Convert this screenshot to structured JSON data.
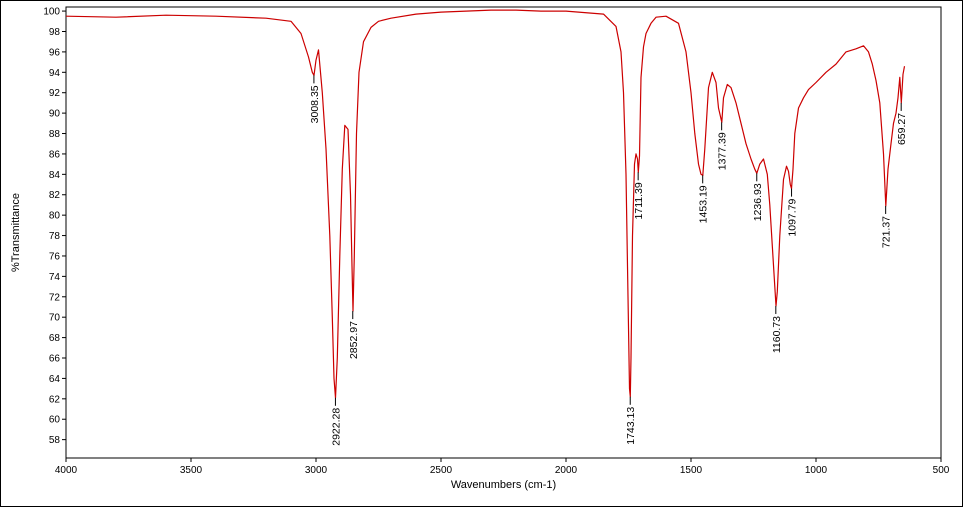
{
  "chart_data": {
    "type": "line",
    "xlabel": "Wavenumbers (cm-1)",
    "ylabel": "%Transmittance",
    "xlim": [
      4000,
      500
    ],
    "ylim": [
      56.2,
      100.4
    ],
    "x_ticks": [
      4000,
      3500,
      3000,
      2500,
      2000,
      1500,
      1000,
      500
    ],
    "y_ticks": [
      58,
      60,
      62,
      64,
      66,
      68,
      70,
      72,
      74,
      76,
      78,
      80,
      82,
      84,
      86,
      88,
      90,
      92,
      94,
      96,
      98,
      100
    ],
    "grid": false,
    "line_color": "#cc0000",
    "series": [
      {
        "x": [
          4000,
          3800,
          3600,
          3400,
          3200,
          3100,
          3060,
          3030,
          3015,
          3008,
          3000,
          2990,
          2975,
          2960,
          2945,
          2935,
          2928,
          2922,
          2915,
          2905,
          2895,
          2885,
          2872,
          2862,
          2856,
          2852,
          2847,
          2838,
          2828,
          2810,
          2780,
          2750,
          2700,
          2600,
          2500,
          2400,
          2300,
          2200,
          2100,
          2000,
          1900,
          1850,
          1800,
          1780,
          1770,
          1760,
          1752,
          1746,
          1743,
          1740,
          1734,
          1726,
          1720,
          1714,
          1711,
          1706,
          1700,
          1690,
          1680,
          1660,
          1640,
          1600,
          1550,
          1520,
          1500,
          1485,
          1470,
          1460,
          1453,
          1445,
          1430,
          1415,
          1400,
          1390,
          1377,
          1370,
          1355,
          1340,
          1320,
          1300,
          1280,
          1260,
          1245,
          1237,
          1225,
          1210,
          1195,
          1185,
          1175,
          1165,
          1160,
          1155,
          1145,
          1130,
          1118,
          1110,
          1103,
          1098,
          1092,
          1085,
          1070,
          1050,
          1030,
          1000,
          960,
          920,
          880,
          840,
          810,
          790,
          775,
          760,
          745,
          730,
          721,
          712,
          700,
          690,
          680,
          672,
          665,
          659,
          652,
          646
        ],
        "y": [
          99.5,
          99.4,
          99.6,
          99.5,
          99.3,
          99.0,
          97.8,
          95.5,
          94.0,
          93.7,
          95.2,
          96.2,
          92.0,
          86.5,
          78.0,
          70.0,
          64.0,
          62.1,
          66.0,
          76.0,
          84.5,
          88.8,
          88.4,
          82.0,
          75.0,
          70.6,
          76.0,
          88.0,
          94.0,
          97.0,
          98.4,
          99.0,
          99.3,
          99.7,
          99.9,
          100.0,
          100.1,
          100.1,
          100.0,
          100.0,
          99.8,
          99.7,
          98.5,
          96.0,
          92.0,
          84.0,
          72.0,
          63.0,
          62.2,
          66.0,
          78.0,
          85.0,
          86.0,
          85.5,
          84.2,
          85.8,
          93.5,
          96.5,
          97.8,
          98.8,
          99.4,
          99.5,
          98.8,
          96.0,
          92.0,
          88.0,
          85.0,
          84.0,
          83.9,
          86.5,
          92.5,
          94.0,
          93.0,
          90.5,
          89.1,
          91.5,
          92.8,
          92.5,
          91.0,
          89.0,
          87.0,
          85.5,
          84.5,
          84.1,
          85.0,
          85.5,
          84.0,
          81.0,
          77.0,
          73.0,
          71.1,
          72.5,
          78.0,
          83.5,
          84.8,
          84.3,
          83.0,
          82.6,
          84.5,
          88.0,
          90.5,
          91.5,
          92.3,
          93.0,
          94.0,
          94.8,
          96.0,
          96.3,
          96.6,
          96.0,
          94.8,
          93.2,
          91.0,
          86.0,
          80.9,
          84.5,
          87.0,
          89.0,
          90.0,
          91.5,
          93.5,
          91.0,
          93.8,
          94.6
        ]
      }
    ],
    "peak_labels": [
      {
        "x": 3008.35,
        "y": 93.7,
        "text": "3008.35"
      },
      {
        "x": 2922.28,
        "y": 62.1,
        "text": "2922.28"
      },
      {
        "x": 2852.97,
        "y": 70.6,
        "text": "2852.97"
      },
      {
        "x": 1743.13,
        "y": 62.2,
        "text": "1743.13"
      },
      {
        "x": 1711.39,
        "y": 84.2,
        "text": "1711.39"
      },
      {
        "x": 1453.19,
        "y": 83.9,
        "text": "1453.19"
      },
      {
        "x": 1377.39,
        "y": 89.1,
        "text": "1377.39"
      },
      {
        "x": 1236.93,
        "y": 84.1,
        "text": "1236.93"
      },
      {
        "x": 1160.73,
        "y": 71.1,
        "text": "1160.73"
      },
      {
        "x": 1097.79,
        "y": 82.6,
        "text": "1097.79"
      },
      {
        "x": 721.37,
        "y": 80.9,
        "text": "721.37"
      },
      {
        "x": 659.27,
        "y": 91.0,
        "text": "659.27"
      }
    ]
  }
}
